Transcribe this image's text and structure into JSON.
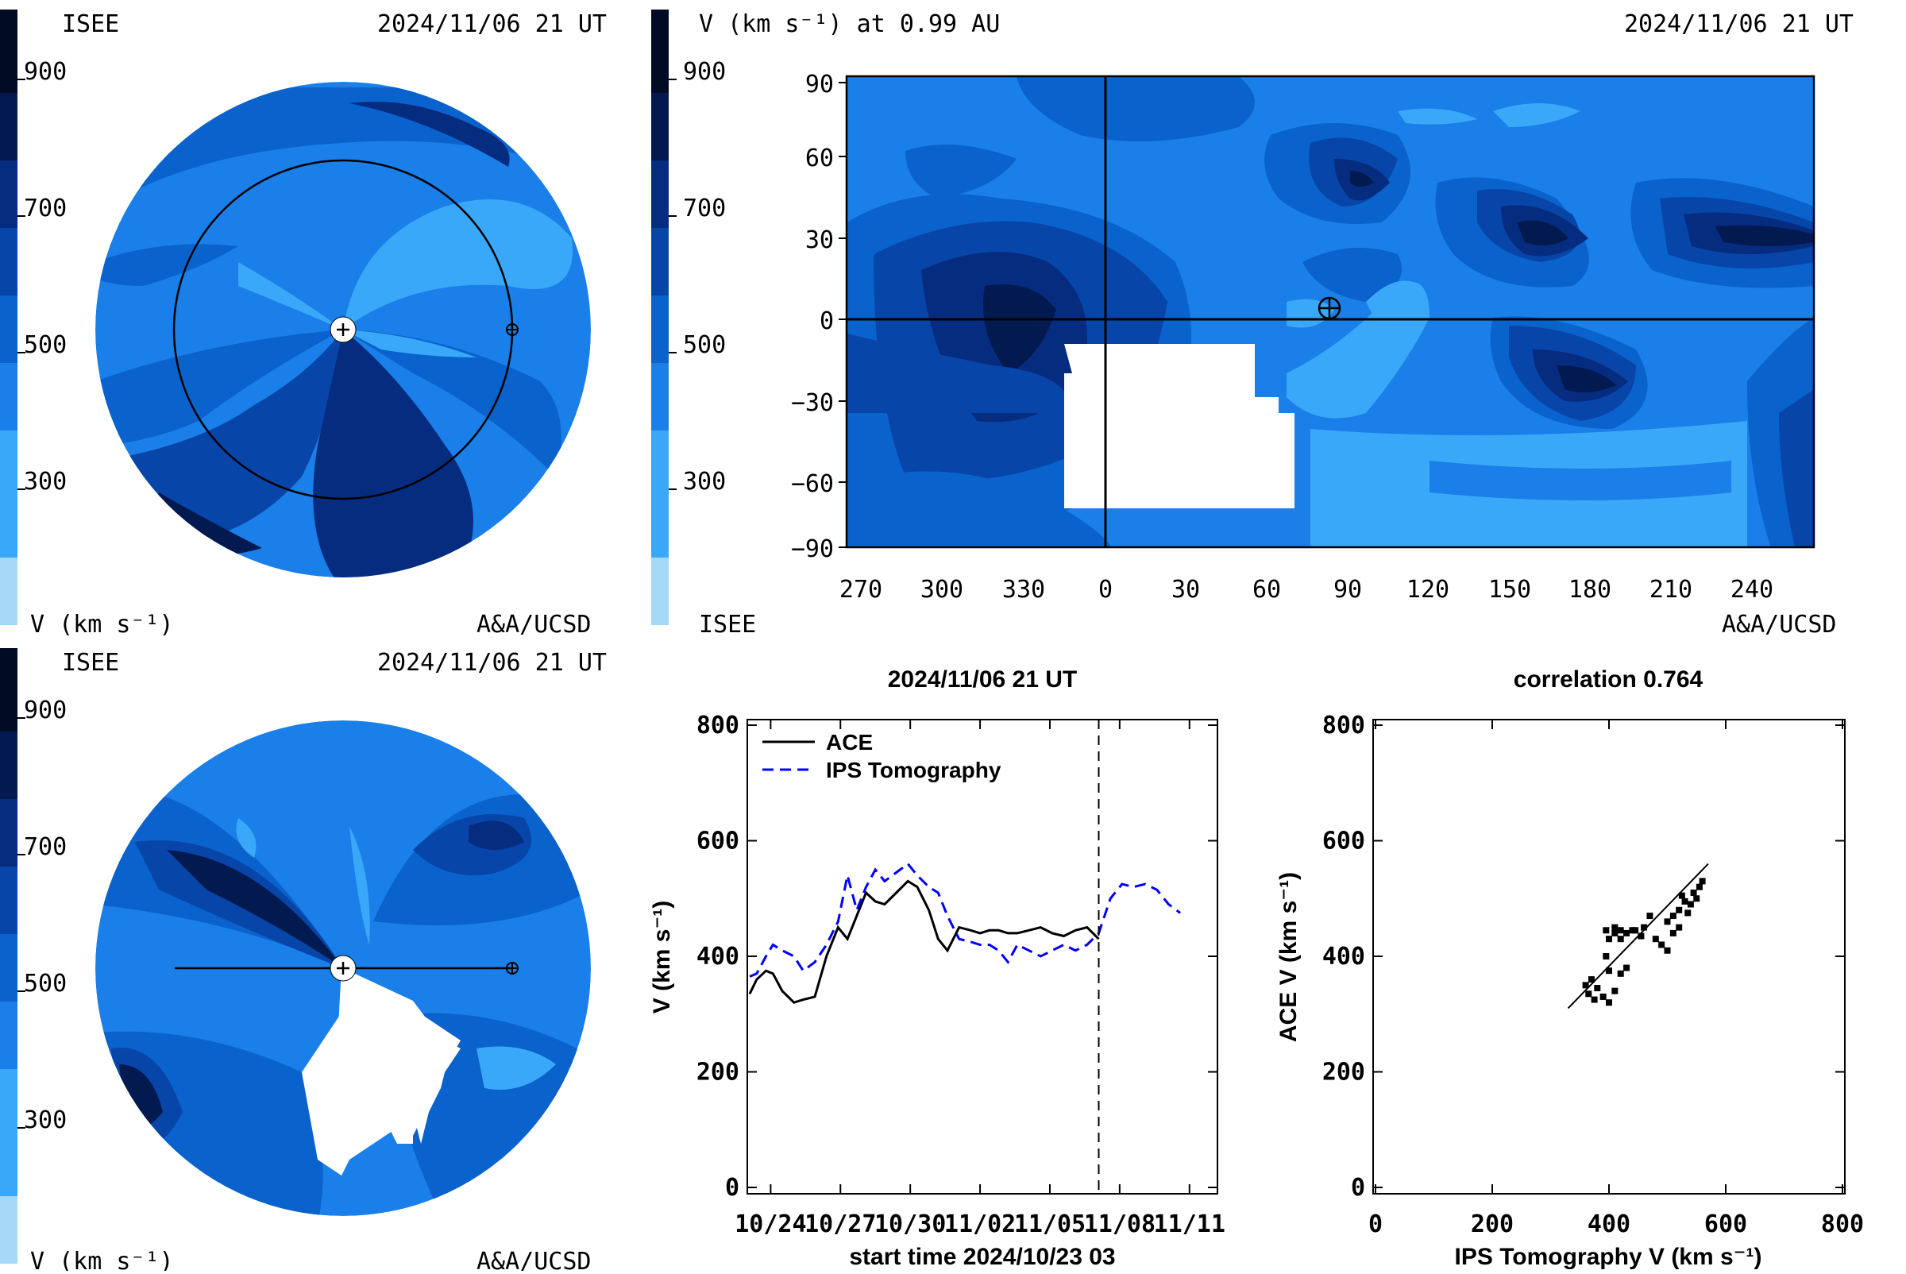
{
  "colors": {
    "v200": "#a6d8f8",
    "v300": "#3aa8f8",
    "v400": "#1a7fe8",
    "v500": "#0a62cc",
    "v600": "#0845a8",
    "v700": "#062c80",
    "v800": "#031a50",
    "v900": "#010b24",
    "ips_line": "#0000ff",
    "ace_line": "#000000"
  },
  "top_left": {
    "org": "ISEE",
    "datetime": "2024/11/06 21 UT",
    "colorbar_ticks": [
      "900",
      "700",
      "500",
      "300"
    ],
    "unit_label": "V (km s⁻¹)",
    "credit": "A&A/UCSD"
  },
  "bottom_left": {
    "org": "ISEE",
    "datetime": "2024/11/06 21 UT",
    "colorbar_ticks": [
      "900",
      "700",
      "500",
      "300"
    ],
    "unit_label": "V (km s⁻¹)",
    "credit": "A&A/UCSD"
  },
  "top_right": {
    "title": "V (km s⁻¹) at 0.99 AU",
    "datetime": "2024/11/06 21 UT",
    "colorbar_ticks": [
      "900",
      "700",
      "500",
      "300"
    ],
    "org": "ISEE",
    "credit": "A&A/UCSD",
    "x_ticks": [
      "270",
      "300",
      "330",
      "0",
      "30",
      "60",
      "90",
      "120",
      "150",
      "180",
      "210",
      "240"
    ],
    "y_ticks": [
      "90",
      "60",
      "30",
      "0",
      "−30",
      "−60",
      "−90"
    ]
  },
  "chart_data": [
    {
      "type": "line",
      "title": "2024/11/06 21 UT",
      "xlabel": "start time 2024/10/23 03",
      "ylabel": "V (km s⁻¹)",
      "ylim": [
        0,
        800
      ],
      "xlim_days": [
        0,
        20
      ],
      "x_tick_labels": [
        "10/24",
        "10/27",
        "10/30",
        "11/02",
        "11/05",
        "11/08",
        "11/11"
      ],
      "y_tick_labels": [
        "0",
        "200",
        "400",
        "600",
        "800"
      ],
      "vline_label_time": "2024/11/06 21 UT",
      "legend": "top-left",
      "series": [
        {
          "name": "ACE",
          "x": [
            0,
            0.3,
            0.7,
            1.0,
            1.4,
            1.9,
            2.3,
            2.8,
            3.3,
            3.8,
            4.2,
            4.6,
            5.0,
            5.4,
            5.8,
            6.3,
            6.8,
            7.2,
            7.7,
            8.1,
            8.5,
            9.0,
            9.5,
            9.9,
            10.3,
            10.7,
            11.1,
            11.5,
            12.0,
            12.5,
            13.0,
            13.5,
            14.0,
            14.5,
            15.0
          ],
          "y": [
            335,
            360,
            375,
            370,
            340,
            320,
            325,
            330,
            400,
            450,
            430,
            470,
            510,
            495,
            490,
            510,
            530,
            520,
            480,
            430,
            410,
            450,
            445,
            440,
            445,
            445,
            440,
            440,
            445,
            450,
            440,
            435,
            445,
            450,
            430
          ]
        },
        {
          "name": "IPS Tomography",
          "x": [
            0,
            0.3,
            0.7,
            1.0,
            1.4,
            1.9,
            2.3,
            2.8,
            3.3,
            3.8,
            4.2,
            4.6,
            5.0,
            5.4,
            5.8,
            6.3,
            6.8,
            7.2,
            7.7,
            8.1,
            8.5,
            9.0,
            9.5,
            9.9,
            10.3,
            10.7,
            11.1,
            11.5,
            12.0,
            12.5,
            13.0,
            13.5,
            14.0,
            14.5,
            15.0,
            15.5,
            16.0,
            16.5,
            17.0,
            17.5,
            18.0,
            18.5
          ],
          "y": [
            365,
            370,
            400,
            420,
            410,
            400,
            375,
            390,
            420,
            460,
            540,
            480,
            520,
            550,
            530,
            545,
            560,
            540,
            520,
            510,
            470,
            430,
            425,
            420,
            420,
            410,
            390,
            420,
            410,
            400,
            410,
            420,
            410,
            420,
            440,
            500,
            525,
            520,
            525,
            515,
            490,
            475
          ]
        }
      ],
      "vline_x": 15.0
    },
    {
      "type": "scatter",
      "title": "correlation 0.764",
      "xlabel": "IPS Tomography V (km s⁻¹)",
      "ylabel": "ACE V (km s⁻¹)",
      "xlim": [
        0,
        800
      ],
      "ylim": [
        0,
        800
      ],
      "x_tick_labels": [
        "0",
        "200",
        "400",
        "600",
        "800"
      ],
      "y_tick_labels": [
        "0",
        "200",
        "400",
        "600",
        "800"
      ],
      "points": [
        {
          "x": 365,
          "y": 335
        },
        {
          "x": 370,
          "y": 360
        },
        {
          "x": 400,
          "y": 375
        },
        {
          "x": 420,
          "y": 370
        },
        {
          "x": 410,
          "y": 340
        },
        {
          "x": 400,
          "y": 320
        },
        {
          "x": 375,
          "y": 325
        },
        {
          "x": 390,
          "y": 330
        },
        {
          "x": 360,
          "y": 350
        },
        {
          "x": 380,
          "y": 345
        },
        {
          "x": 430,
          "y": 380
        },
        {
          "x": 395,
          "y": 400
        },
        {
          "x": 400,
          "y": 430
        },
        {
          "x": 395,
          "y": 445
        },
        {
          "x": 410,
          "y": 440
        },
        {
          "x": 430,
          "y": 440
        },
        {
          "x": 420,
          "y": 445
        },
        {
          "x": 410,
          "y": 450
        },
        {
          "x": 420,
          "y": 430
        },
        {
          "x": 440,
          "y": 445
        },
        {
          "x": 460,
          "y": 450
        },
        {
          "x": 480,
          "y": 430
        },
        {
          "x": 470,
          "y": 470
        },
        {
          "x": 490,
          "y": 420
        },
        {
          "x": 500,
          "y": 410
        },
        {
          "x": 510,
          "y": 440
        },
        {
          "x": 520,
          "y": 480
        },
        {
          "x": 530,
          "y": 495
        },
        {
          "x": 540,
          "y": 490
        },
        {
          "x": 545,
          "y": 510
        },
        {
          "x": 550,
          "y": 500
        },
        {
          "x": 560,
          "y": 530
        },
        {
          "x": 555,
          "y": 520
        },
        {
          "x": 520,
          "y": 450
        },
        {
          "x": 510,
          "y": 470
        },
        {
          "x": 500,
          "y": 460
        },
        {
          "x": 525,
          "y": 505
        },
        {
          "x": 535,
          "y": 475
        },
        {
          "x": 445,
          "y": 445
        },
        {
          "x": 455,
          "y": 435
        }
      ],
      "fit_line": {
        "x": [
          330,
          570
        ],
        "y": [
          310,
          560
        ]
      }
    }
  ]
}
